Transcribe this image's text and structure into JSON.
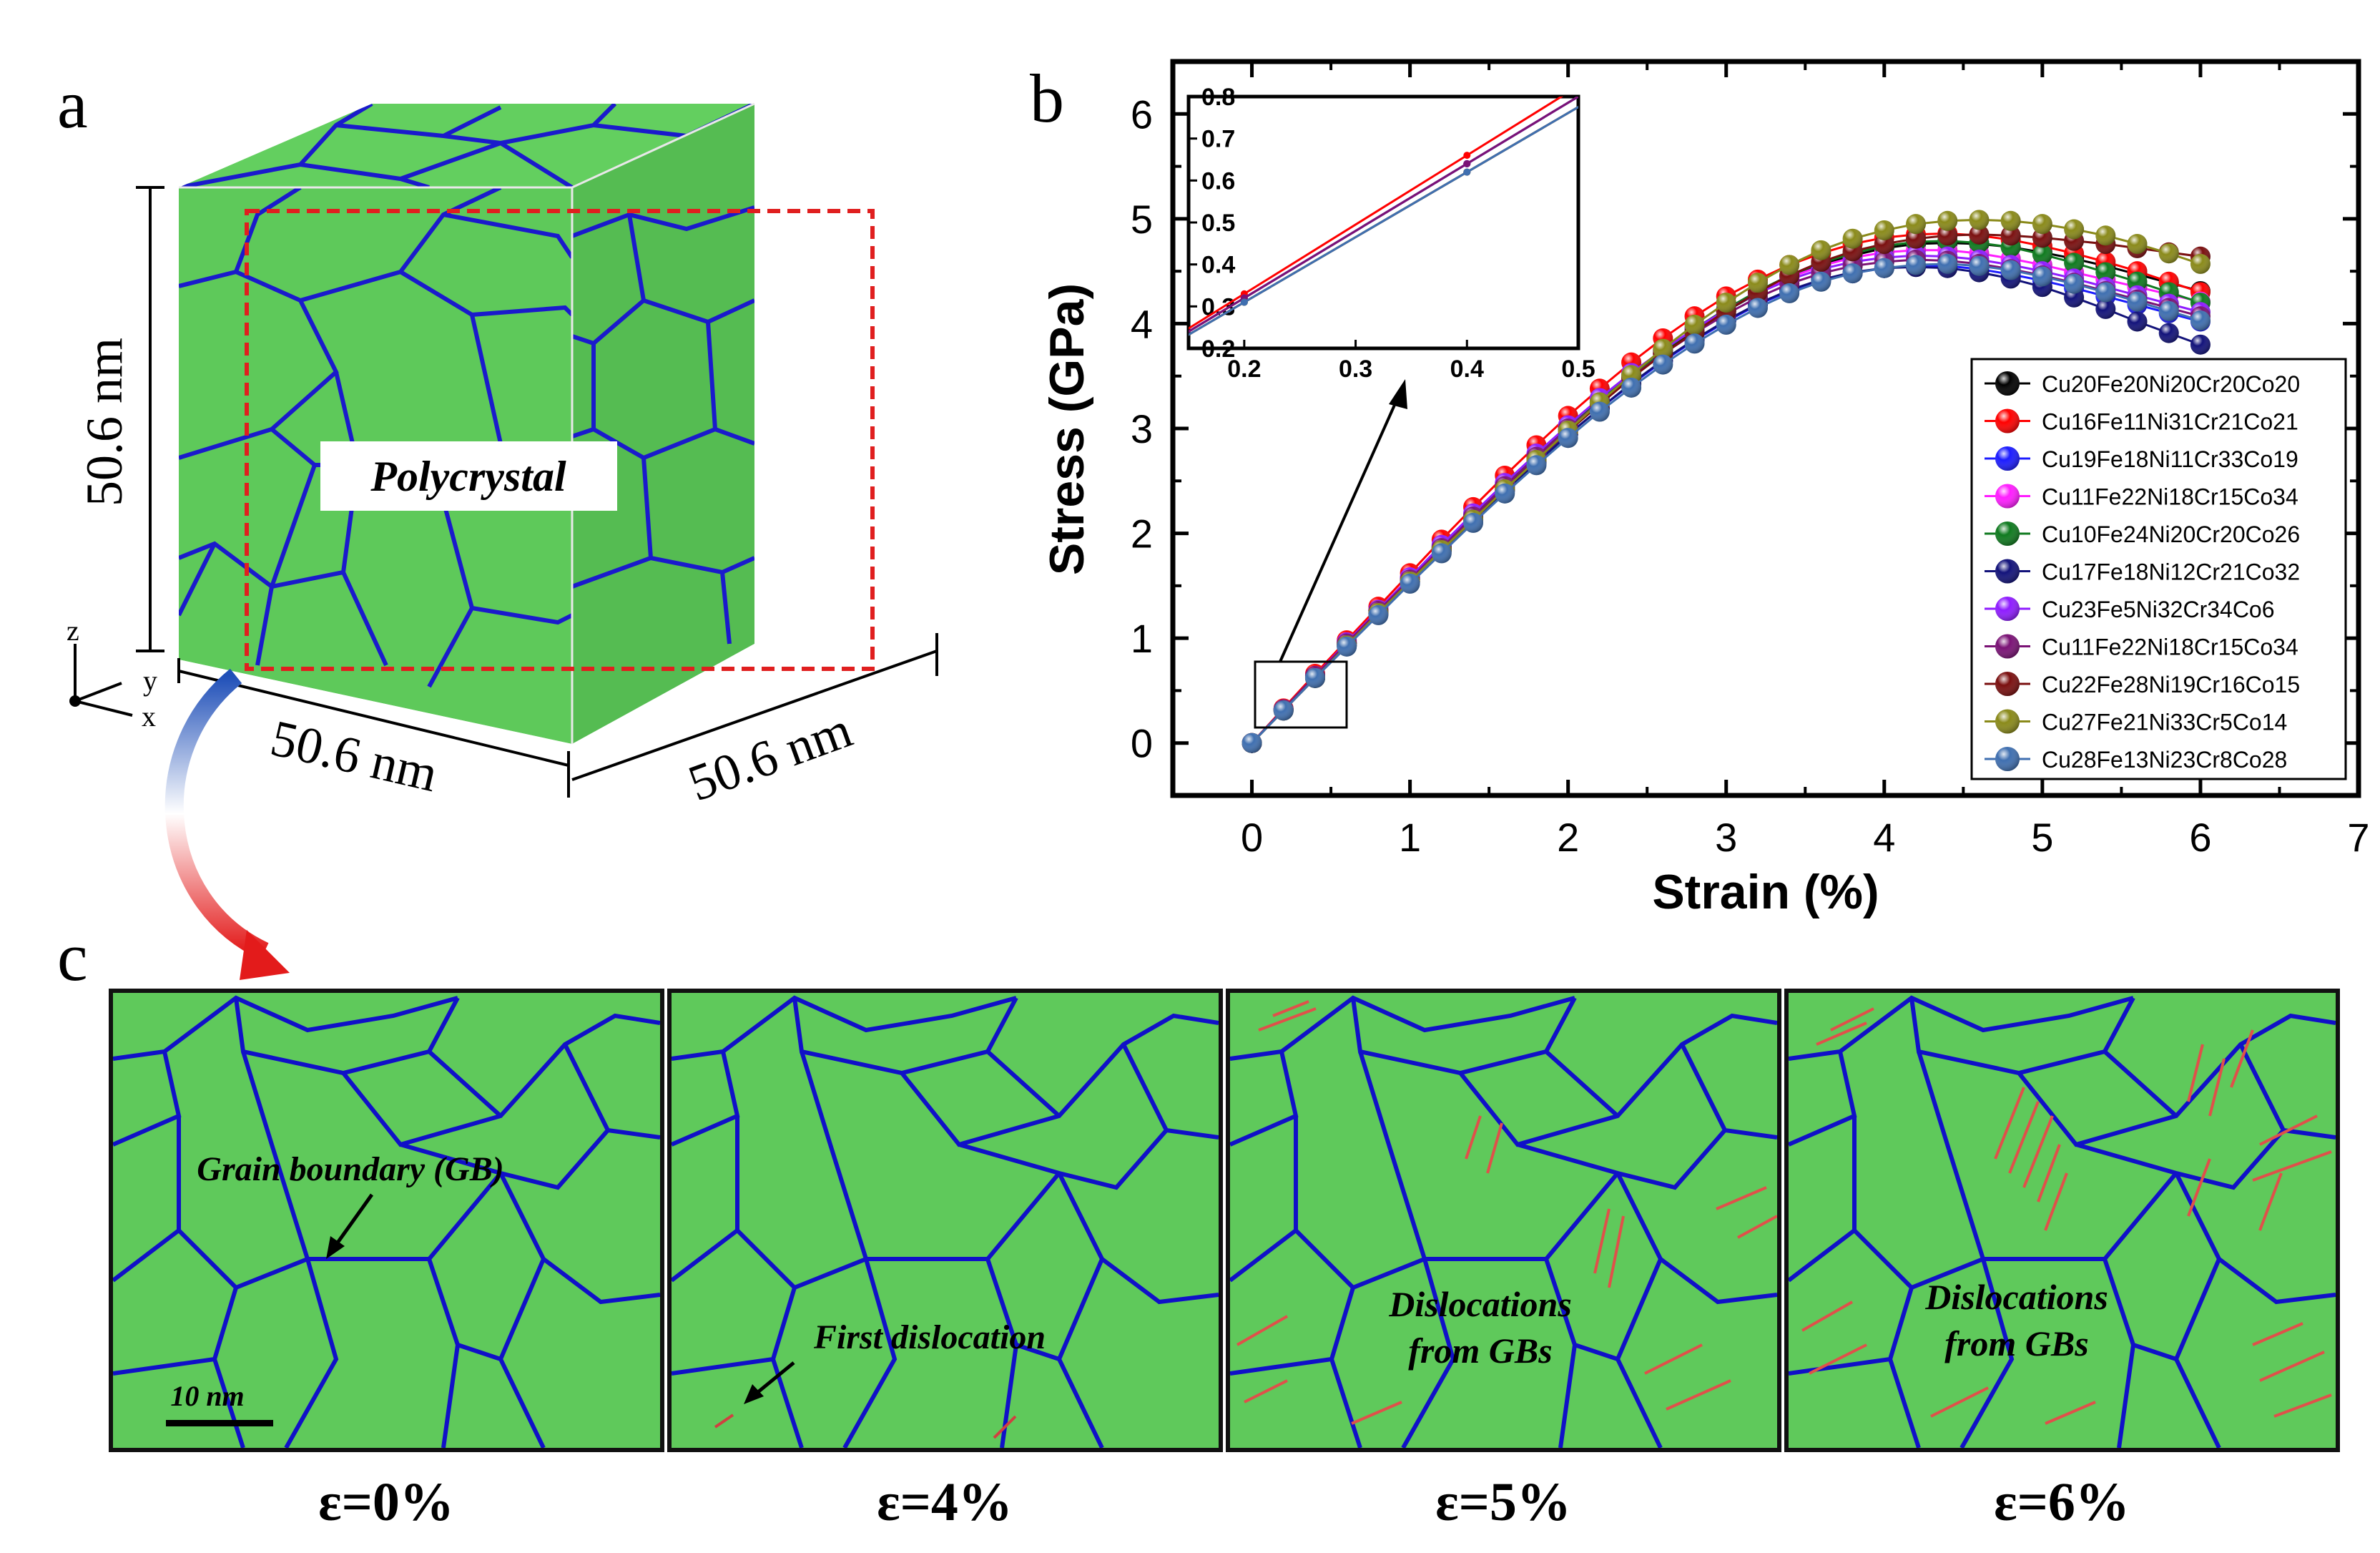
{
  "panel_a": {
    "letter": "a",
    "label": "Polycrystal",
    "dim_height": "50.6 nm",
    "dim_front": "50.6 nm",
    "dim_side": "50.6 nm",
    "axis_z": "z",
    "axis_y": "y",
    "axis_x": "x",
    "colors": {
      "grain": "#5ec95a",
      "boundary": "#1a1acc",
      "top_face": "#63cf5f",
      "side_face": "#55bc52",
      "box": "#e01f1f"
    }
  },
  "panel_b": {
    "letter": "b"
  },
  "chart_data": {
    "type": "line",
    "xlabel": "Strain (%)",
    "ylabel": "Stress (GPa)",
    "xlim": [
      -0.5,
      7
    ],
    "ylim": [
      -0.5,
      6.5
    ],
    "xticks": [
      "0",
      "1",
      "2",
      "3",
      "4",
      "5",
      "6",
      "7"
    ],
    "yticks": [
      "0",
      "1",
      "2",
      "3",
      "4",
      "5",
      "6"
    ],
    "legend_position": "bottom-right",
    "x": [
      0,
      0.2,
      0.4,
      0.6,
      0.8,
      1.0,
      1.2,
      1.4,
      1.6,
      1.8,
      2.0,
      2.2,
      2.4,
      2.6,
      2.8,
      3.0,
      3.2,
      3.4,
      3.6,
      3.8,
      4.0,
      4.2,
      4.4,
      4.6,
      4.8,
      5.0,
      5.2,
      5.4,
      5.6,
      5.8,
      6.0
    ],
    "series": [
      {
        "name": "Cu20Fe20Ni20Cr20Co20",
        "color": "#000000",
        "values": [
          0,
          0.32,
          0.64,
          0.95,
          1.26,
          1.56,
          1.86,
          2.15,
          2.44,
          2.72,
          2.99,
          3.25,
          3.49,
          3.72,
          3.93,
          4.12,
          4.29,
          4.44,
          4.56,
          4.65,
          4.72,
          4.76,
          4.77,
          4.76,
          4.73,
          4.68,
          4.62,
          4.55,
          4.47,
          4.39,
          4.31
        ]
      },
      {
        "name": "Cu16Fe11Ni31Cr21Co21",
        "color": "#ff0000",
        "values": [
          0,
          0.33,
          0.66,
          0.98,
          1.3,
          1.62,
          1.94,
          2.25,
          2.55,
          2.84,
          3.12,
          3.38,
          3.63,
          3.86,
          4.07,
          4.26,
          4.42,
          4.56,
          4.67,
          4.76,
          4.82,
          4.85,
          4.86,
          4.84,
          4.8,
          4.74,
          4.67,
          4.59,
          4.5,
          4.4,
          4.3
        ]
      },
      {
        "name": "Cu19Fe18Ni11Cr33Co19",
        "color": "#1c1cff",
        "values": [
          0,
          0.32,
          0.63,
          0.94,
          1.24,
          1.54,
          1.84,
          2.13,
          2.41,
          2.68,
          2.94,
          3.19,
          3.42,
          3.64,
          3.84,
          4.02,
          4.18,
          4.31,
          4.41,
          4.48,
          4.53,
          4.55,
          4.55,
          4.52,
          4.47,
          4.41,
          4.34,
          4.26,
          4.18,
          4.1,
          4.02
        ]
      },
      {
        "name": "Cu11Fe22Ni18Cr15Co34",
        "color": "#ff1dff",
        "values": [
          0,
          0.32,
          0.64,
          0.96,
          1.27,
          1.58,
          1.88,
          2.18,
          2.47,
          2.75,
          3.02,
          3.27,
          3.51,
          3.74,
          3.95,
          4.14,
          4.3,
          4.44,
          4.55,
          4.63,
          4.68,
          4.7,
          4.7,
          4.67,
          4.62,
          4.56,
          4.49,
          4.42,
          4.35,
          4.28,
          4.21
        ]
      },
      {
        "name": "Cu10Fe24Ni20Cr20Co26",
        "color": "#0f7a1f",
        "values": [
          0,
          0.32,
          0.64,
          0.95,
          1.26,
          1.57,
          1.87,
          2.17,
          2.46,
          2.74,
          3.01,
          3.27,
          3.51,
          3.74,
          3.95,
          4.14,
          4.31,
          4.46,
          4.58,
          4.67,
          4.74,
          4.78,
          4.79,
          4.77,
          4.73,
          4.66,
          4.58,
          4.49,
          4.4,
          4.3,
          4.2
        ]
      },
      {
        "name": "Cu17Fe18Ni12Cr21Co32",
        "color": "#12127a",
        "values": [
          0,
          0.31,
          0.62,
          0.93,
          1.23,
          1.53,
          1.83,
          2.12,
          2.4,
          2.67,
          2.94,
          3.19,
          3.43,
          3.65,
          3.85,
          4.03,
          4.19,
          4.32,
          4.42,
          4.49,
          4.53,
          4.54,
          4.53,
          4.49,
          4.43,
          4.35,
          4.25,
          4.14,
          4.02,
          3.91,
          3.8
        ]
      },
      {
        "name": "Cu23Fe5Ni32Cr34Co6",
        "color": "#8f1cff",
        "values": [
          0,
          0.32,
          0.64,
          0.96,
          1.27,
          1.58,
          1.89,
          2.19,
          2.48,
          2.76,
          3.03,
          3.29,
          3.53,
          3.75,
          3.95,
          4.13,
          4.29,
          4.42,
          4.52,
          4.59,
          4.63,
          4.65,
          4.64,
          4.61,
          4.56,
          4.5,
          4.43,
          4.35,
          4.27,
          4.19,
          4.11
        ]
      },
      {
        "name": "Cu11Fe22Ni18Cr15Co34",
        "color": "#7a1275",
        "values": [
          0,
          0.32,
          0.64,
          0.95,
          1.26,
          1.56,
          1.86,
          2.16,
          2.45,
          2.73,
          3.0,
          3.25,
          3.49,
          3.71,
          3.91,
          4.09,
          4.25,
          4.38,
          4.48,
          4.55,
          4.59,
          4.61,
          4.6,
          4.57,
          4.52,
          4.46,
          4.39,
          4.31,
          4.23,
          4.15,
          4.07
        ]
      },
      {
        "name": "Cu22Fe28Ni19Cr16Co15",
        "color": "#7a0f0f",
        "values": [
          0,
          0.31,
          0.62,
          0.93,
          1.24,
          1.54,
          1.84,
          2.13,
          2.42,
          2.7,
          2.97,
          3.23,
          3.48,
          3.71,
          3.92,
          4.12,
          4.3,
          4.46,
          4.59,
          4.69,
          4.76,
          4.81,
          4.84,
          4.85,
          4.84,
          4.82,
          4.79,
          4.76,
          4.72,
          4.68,
          4.64
        ]
      },
      {
        "name": "Cu27Fe21Ni33Cr5Co14",
        "color": "#8a8a1a",
        "values": [
          0,
          0.31,
          0.62,
          0.93,
          1.24,
          1.54,
          1.84,
          2.13,
          2.42,
          2.7,
          2.98,
          3.25,
          3.51,
          3.76,
          3.99,
          4.2,
          4.39,
          4.56,
          4.7,
          4.81,
          4.89,
          4.95,
          4.98,
          4.99,
          4.98,
          4.95,
          4.9,
          4.84,
          4.76,
          4.67,
          4.57
        ]
      },
      {
        "name": "Cu28Fe13Ni23Cr8Co28",
        "color": "#3f6fb0",
        "values": [
          0,
          0.31,
          0.62,
          0.92,
          1.22,
          1.52,
          1.81,
          2.1,
          2.38,
          2.65,
          2.91,
          3.16,
          3.39,
          3.61,
          3.81,
          3.99,
          4.15,
          4.29,
          4.4,
          4.48,
          4.53,
          4.56,
          4.57,
          4.55,
          4.51,
          4.45,
          4.38,
          4.3,
          4.21,
          4.12,
          4.03
        ]
      }
    ],
    "inset": {
      "xlim": [
        0.15,
        0.5
      ],
      "ylim": [
        0.2,
        0.8
      ],
      "xticks": [
        "0.2",
        "0.3",
        "0.4",
        "0.5"
      ],
      "yticks": [
        "0.2",
        "0.3",
        "0.4",
        "0.5",
        "0.6",
        "0.7",
        "0.8"
      ]
    }
  },
  "panel_c": {
    "letter": "c",
    "scale_bar": "10 nm",
    "snapshots": [
      {
        "caption": "ε=0%",
        "annotation": "Grain boundary (GB)"
      },
      {
        "caption": "ε=4%",
        "annotation": "First dislocation"
      },
      {
        "caption": "ε=5%",
        "annotation": "Dislocations from GBs"
      },
      {
        "caption": "ε=6%",
        "annotation": "Dislocations from GBs"
      }
    ]
  }
}
